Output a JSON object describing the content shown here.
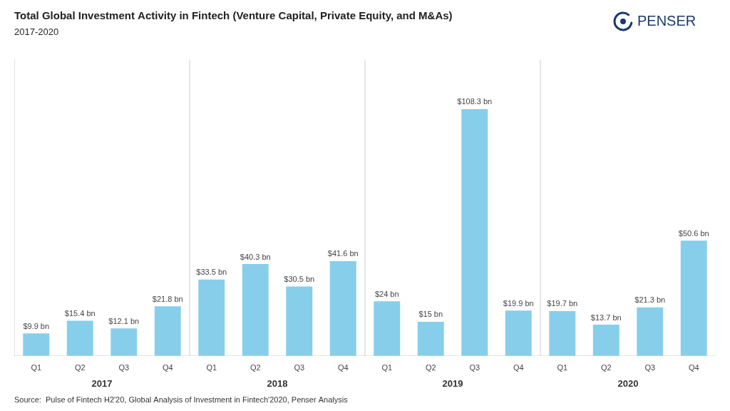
{
  "chart_data": {
    "type": "bar",
    "title": "Total Global Investment Activity in Fintech (Venture Capital, Private Equity, and M&As)",
    "subtitle": "2017-2020",
    "source": "Source:  Pulse of Fintech H2'20, Global Analysis of Investment in Fintech'2020, Penser Analysis",
    "logo": "PENSER",
    "annotations": [
      "2017",
      "2018",
      "2019",
      "2020"
    ],
    "categories": [
      "Q1",
      "Q2",
      "Q3",
      "Q4",
      "Q1",
      "Q2",
      "Q3",
      "Q4",
      "Q1",
      "Q2",
      "Q3",
      "Q4",
      "Q1",
      "Q2",
      "Q3",
      "Q4"
    ],
    "values": [
      9.9,
      15.4,
      12.1,
      21.8,
      33.5,
      40.3,
      30.5,
      41.6,
      24.0,
      15.0,
      108.3,
      19.9,
      19.7,
      13.7,
      21.3,
      50.6
    ],
    "value_labels": [
      "$9.9 bn",
      "$15.4 bn",
      "$12.1 bn",
      "$21.8 bn",
      "$33.5 bn",
      "$40.3 bn",
      "$30.5 bn",
      "$41.6 bn",
      "$24 bn",
      "$15 bn",
      "$108.3 bn",
      "$19.9 bn",
      "$19.7 bn",
      "$13.7 bn",
      "$21.3 bn",
      "$50.6 bn"
    ],
    "data_labels": true,
    "color": "#87CEEB",
    "ylim": [
      0,
      130
    ],
    "grid": false,
    "tick_labels": "x"
  }
}
